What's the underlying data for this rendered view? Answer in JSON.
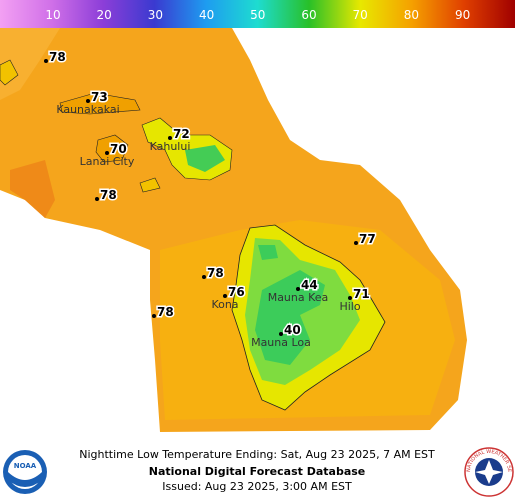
{
  "legend": {
    "ticks": [
      "10",
      "20",
      "30",
      "40",
      "50",
      "60",
      "70",
      "80",
      "90"
    ]
  },
  "stations": [
    {
      "value": "78"
    },
    {
      "value": "73",
      "place": "Kaunakakai"
    },
    {
      "value": "70",
      "place": "Lanai City"
    },
    {
      "value": "72",
      "place": "Kahului"
    },
    {
      "value": "78"
    },
    {
      "value": "77"
    },
    {
      "value": "78"
    },
    {
      "value": "76",
      "place": "Kona"
    },
    {
      "value": "44",
      "place": "Mauna Kea"
    },
    {
      "value": "71",
      "place": "Hilo"
    },
    {
      "value": "78"
    },
    {
      "value": "40",
      "place": "Mauna Loa"
    }
  ],
  "footer": {
    "title": "Nighttime Low Temperature Ending: Sat, Aug 23 2025, 7 AM EST",
    "source": "National Digital Forecast Database",
    "issued": "Issued: Aug 23 2025, 3:00 AM EST"
  },
  "logos": {
    "noaa": "NOAA",
    "nws": "NATIONAL WEATHER SERVICE"
  }
}
